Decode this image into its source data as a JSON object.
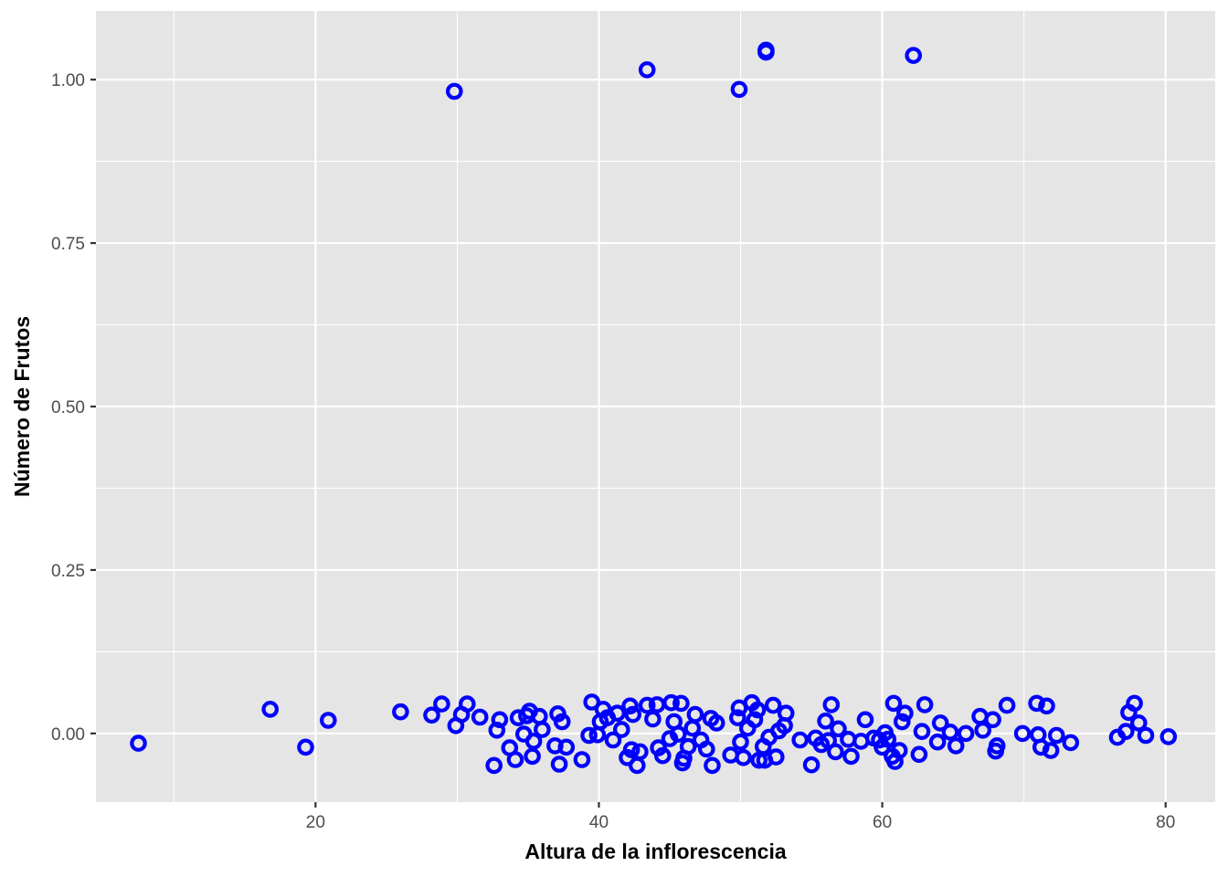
{
  "chart_data": {
    "type": "scatter",
    "title": "",
    "xlabel": "Altura de la inflorescencia",
    "ylabel": "Número de Frutos",
    "xlim": [
      4.5,
      83.5
    ],
    "ylim": [
      -0.105,
      1.105
    ],
    "x_ticks": [
      20,
      40,
      60,
      80
    ],
    "x_tick_labels": [
      "20",
      "40",
      "60",
      "80"
    ],
    "y_ticks": [
      0,
      0.25,
      0.5,
      0.75,
      1.0
    ],
    "y_tick_labels": [
      "0.00",
      "0.25",
      "0.50",
      "0.75",
      "1.00"
    ],
    "grid": true,
    "legend": "none",
    "colors": {
      "point": "#0000ff",
      "panel_background": "#e5e5e5",
      "grid_line": "#ffffff",
      "tick_label": "#4d4d4d",
      "axis_title": "#000000"
    },
    "marker": "open-circle",
    "series": [
      {
        "x": [
          29.8,
          43.4,
          49.9,
          51.8,
          51.8,
          62.2,
          7.5,
          16.8,
          19.3,
          20.9,
          26.0,
          28.2,
          28.9,
          29.9,
          30.3,
          30.7,
          31.6,
          32.6,
          32.8,
          33.0,
          33.7,
          34.1,
          34.3,
          34.7,
          34.9,
          35.1,
          35.3,
          35.4,
          35.8,
          36.0,
          36.9,
          37.1,
          37.2,
          37.4,
          37.7,
          38.8,
          39.3,
          39.5,
          39.9,
          40.1,
          40.3,
          40.6,
          41.0,
          41.3,
          41.6,
          42.0,
          42.2,
          42.3,
          42.4,
          42.7,
          42.9,
          43.4,
          43.8,
          44.1,
          44.2,
          44.5,
          45.0,
          45.1,
          45.3,
          45.6,
          45.8,
          45.9,
          46.0,
          46.3,
          46.6,
          46.8,
          47.2,
          47.6,
          47.9,
          48.0,
          48.3,
          49.3,
          49.8,
          49.9,
          50.0,
          50.2,
          50.5,
          50.8,
          51.0,
          51.2,
          51.3,
          51.6,
          51.7,
          52.0,
          52.3,
          52.5,
          52.7,
          53.1,
          53.2,
          54.2,
          55.0,
          55.3,
          55.7,
          56.0,
          56.2,
          56.4,
          56.7,
          56.9,
          57.6,
          57.8,
          58.5,
          58.8,
          59.4,
          59.8,
          60.0,
          60.2,
          60.4,
          60.7,
          60.8,
          60.9,
          61.2,
          61.4,
          61.6,
          62.6,
          62.8,
          63.0,
          63.9,
          64.1,
          64.8,
          65.2,
          65.9,
          66.9,
          67.1,
          67.8,
          68.0,
          68.1,
          68.8,
          69.9,
          70.9,
          71.0,
          71.2,
          71.6,
          71.9,
          72.3,
          73.3,
          76.6,
          77.2,
          77.4,
          77.8,
          78.1,
          78.6,
          80.2
        ],
        "y": [
          0.982,
          1.015,
          0.985,
          1.045,
          1.042,
          1.037,
          -0.015,
          0.037,
          -0.021,
          0.02,
          0.033,
          0.028,
          0.045,
          0.012,
          0.029,
          0.045,
          0.025,
          -0.049,
          0.005,
          0.021,
          -0.022,
          -0.04,
          0.024,
          -0.001,
          0.027,
          0.034,
          -0.035,
          -0.012,
          0.026,
          0.006,
          -0.019,
          0.03,
          -0.047,
          0.018,
          -0.021,
          -0.04,
          -0.003,
          0.048,
          -0.002,
          0.018,
          0.037,
          0.024,
          -0.01,
          0.031,
          0.006,
          -0.037,
          0.042,
          -0.025,
          0.029,
          -0.049,
          -0.028,
          0.043,
          0.022,
          0.044,
          -0.022,
          -0.034,
          -0.008,
          0.047,
          0.018,
          -0.001,
          0.046,
          -0.045,
          -0.038,
          -0.02,
          0.008,
          0.029,
          -0.01,
          -0.024,
          0.023,
          -0.049,
          0.016,
          -0.033,
          0.024,
          0.039,
          -0.013,
          -0.037,
          0.008,
          0.047,
          0.021,
          0.036,
          -0.041,
          -0.02,
          -0.041,
          -0.006,
          0.043,
          -0.036,
          0.004,
          0.012,
          0.031,
          -0.01,
          -0.048,
          -0.007,
          -0.017,
          0.019,
          -0.011,
          0.044,
          -0.028,
          0.007,
          -0.009,
          -0.035,
          -0.012,
          0.021,
          -0.007,
          -0.01,
          -0.021,
          0.001,
          -0.009,
          -0.035,
          0.046,
          -0.043,
          -0.026,
          0.018,
          0.031,
          -0.032,
          0.003,
          0.044,
          -0.013,
          0.016,
          0.002,
          -0.019,
          0.0,
          0.026,
          0.005,
          0.021,
          -0.027,
          -0.019,
          0.043,
          0.0,
          0.046,
          -0.002,
          -0.021,
          0.042,
          -0.026,
          -0.003,
          -0.014,
          -0.006,
          0.003,
          0.032,
          0.046,
          0.016,
          -0.003,
          -0.005
        ]
      }
    ]
  }
}
